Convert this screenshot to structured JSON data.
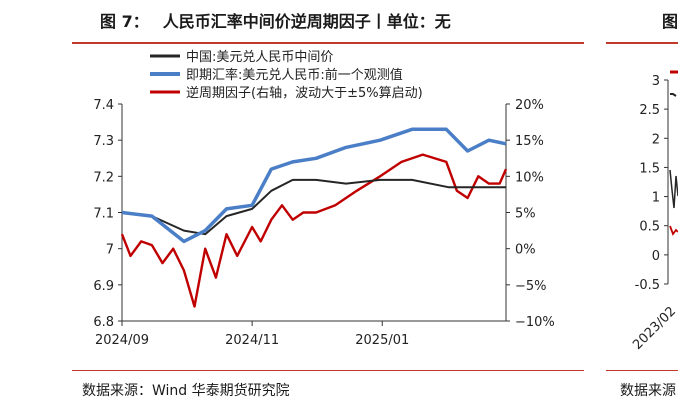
{
  "figure": {
    "number": "图 7：",
    "title": "人民币汇率中间价逆周期因子丨单位：无",
    "source": "数据来源：Wind 华泰期货研究院"
  },
  "side_panel": {
    "title_fragment": "图",
    "source_fragment": "数据来源",
    "y_ticks": [
      "3",
      "2.5",
      "2",
      "1.5",
      "1",
      "0.5",
      "0",
      "-0.5"
    ],
    "x_tick": "2023/02"
  },
  "colors": {
    "black": "#262626",
    "blue": "#4a7fc7",
    "red": "#c00000",
    "rule": "#c0392b"
  },
  "chart_data": {
    "type": "line",
    "title": "",
    "x_ticks": [
      "2024/09",
      "2024/11",
      "2025/01"
    ],
    "xlim": [
      "2024-09-01",
      "2025-02-28"
    ],
    "ylim": [
      6.8,
      7.4
    ],
    "y_ticks": [
      "7.4",
      "7.3",
      "7.2",
      "7.1",
      "7",
      "6.9",
      "6.8"
    ],
    "y2lim": [
      -10,
      20
    ],
    "y2_ticks": [
      "20%",
      "15%",
      "10%",
      "5%",
      "0%",
      "−5%",
      "−10%"
    ],
    "legend_position": "top-left",
    "series": [
      {
        "name": "中国:美元兑人民币中间价",
        "axis": "left",
        "color": "#262626",
        "x": [
          "2024-09-01",
          "2024-09-15",
          "2024-09-30",
          "2024-10-10",
          "2024-10-20",
          "2024-11-01",
          "2024-11-10",
          "2024-11-20",
          "2024-12-01",
          "2024-12-15",
          "2024-12-31",
          "2025-01-15",
          "2025-02-01",
          "2025-02-15",
          "2025-02-28"
        ],
        "y": [
          7.1,
          7.09,
          7.05,
          7.04,
          7.09,
          7.11,
          7.16,
          7.19,
          7.19,
          7.18,
          7.19,
          7.19,
          7.17,
          7.17,
          7.17
        ]
      },
      {
        "name": "即期汇率:美元兑人民币:前一个观测值",
        "axis": "left",
        "color": "#4a7fc7",
        "x": [
          "2024-09-01",
          "2024-09-15",
          "2024-09-30",
          "2024-10-10",
          "2024-10-20",
          "2024-11-01",
          "2024-11-10",
          "2024-11-20",
          "2024-12-01",
          "2024-12-15",
          "2024-12-31",
          "2025-01-15",
          "2025-01-31",
          "2025-02-10",
          "2025-02-20",
          "2025-02-28"
        ],
        "y": [
          7.1,
          7.09,
          7.02,
          7.05,
          7.11,
          7.12,
          7.22,
          7.24,
          7.25,
          7.28,
          7.3,
          7.33,
          7.33,
          7.27,
          7.3,
          7.29
        ]
      },
      {
        "name": "逆周期因子(右轴，波动大于±5%算启动)",
        "axis": "right",
        "color": "#c00000",
        "x": [
          "2024-09-01",
          "2024-09-05",
          "2024-09-10",
          "2024-09-15",
          "2024-09-20",
          "2024-09-25",
          "2024-09-30",
          "2024-10-05",
          "2024-10-10",
          "2024-10-15",
          "2024-10-20",
          "2024-10-25",
          "2024-11-01",
          "2024-11-05",
          "2024-11-10",
          "2024-11-15",
          "2024-11-20",
          "2024-11-25",
          "2024-12-01",
          "2024-12-10",
          "2024-12-20",
          "2024-12-31",
          "2025-01-10",
          "2025-01-20",
          "2025-01-31",
          "2025-02-05",
          "2025-02-10",
          "2025-02-15",
          "2025-02-20",
          "2025-02-25",
          "2025-02-28"
        ],
        "y": [
          2,
          -1,
          1,
          0.5,
          -2,
          0,
          -3,
          -8,
          0,
          -4,
          2,
          -1,
          3,
          1,
          4,
          6,
          4,
          5,
          5,
          6,
          8,
          10,
          12,
          13,
          12,
          8,
          7,
          10,
          9,
          9,
          11
        ]
      }
    ]
  }
}
